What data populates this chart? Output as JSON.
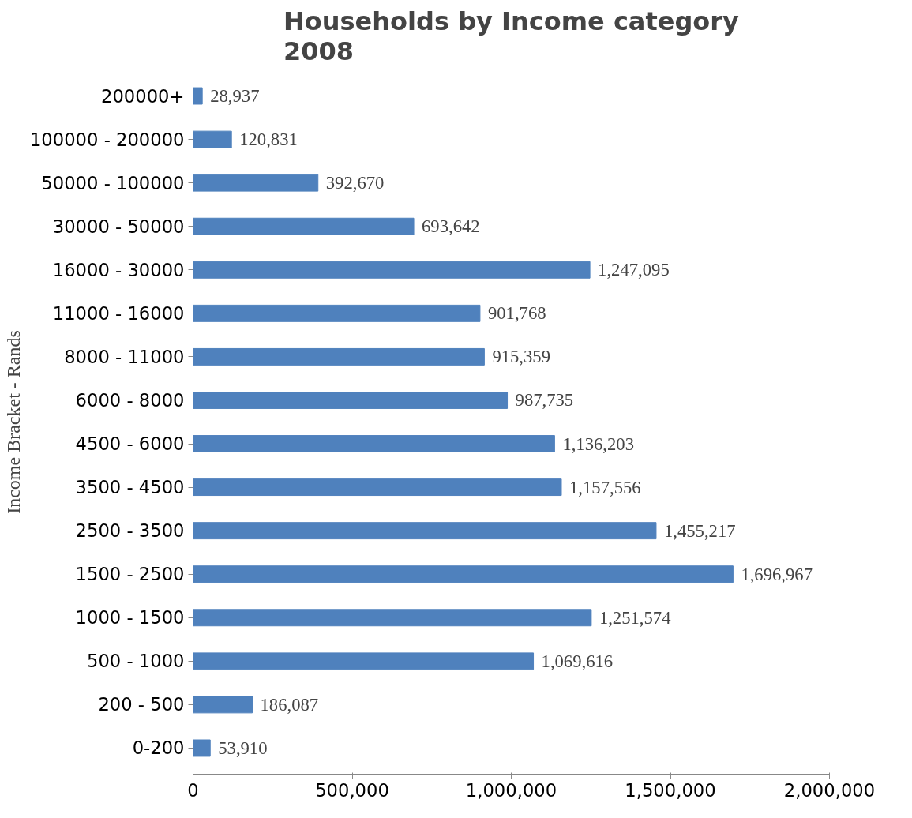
{
  "chart_data": {
    "type": "bar",
    "orientation": "horizontal",
    "title": "Households by Income category\n2008",
    "ylabel": "Income Bracket - Rands",
    "categories": [
      "200000+",
      "100000 - 200000",
      "50000 - 100000",
      "30000 - 50000",
      "16000 - 30000",
      "11000 - 16000",
      "8000 - 11000",
      "6000 - 8000",
      "4500 - 6000",
      "3500 - 4500",
      "2500 - 3500",
      "1500 - 2500",
      "1000 - 1500",
      "500 - 1000",
      "200 - 500",
      "0-200"
    ],
    "values": [
      28937,
      120831,
      392670,
      693642,
      1247095,
      901768,
      915359,
      987735,
      1136203,
      1157556,
      1455217,
      1696967,
      1251574,
      1069616,
      186087,
      53910
    ],
    "value_labels": [
      "28,937",
      "120,831",
      "392,670",
      "693,642",
      "1,247,095",
      "901,768",
      "915,359",
      "987,735",
      "1,136,203",
      "1,157,556",
      "1,455,217",
      "1,696,967",
      "1,251,574",
      "1,069,616",
      "186,087",
      "53,910"
    ],
    "color": "#4f81bd",
    "xlim": [
      0,
      2000000
    ],
    "xticks": [
      0,
      {
        "value": 500000,
        "label": "500,000"
      },
      {
        "value": 1000000,
        "label": "1,000,000"
      },
      {
        "value": 1500000,
        "label": "1,500,000"
      },
      {
        "value": 2000000,
        "label": "2,000,000"
      }
    ],
    "grid": false
  }
}
